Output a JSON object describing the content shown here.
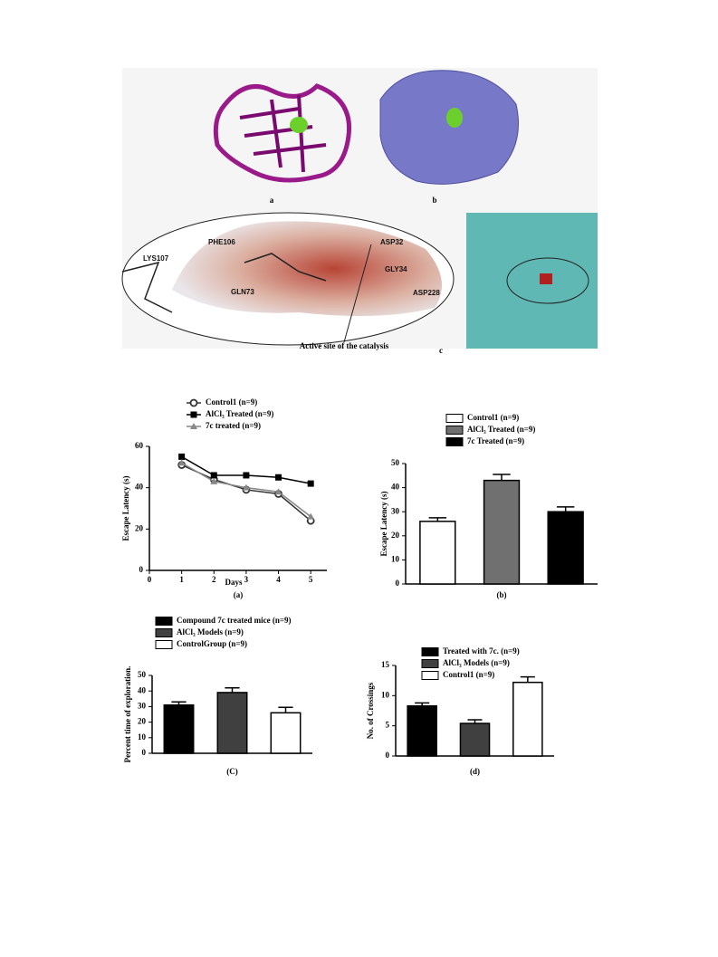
{
  "molecular_panel": {
    "label_a": "a",
    "label_b": "b",
    "label_c": "c",
    "caption": "Active site of the catalysis",
    "residues": [
      "PHE106",
      "ASP32",
      "LYS107",
      "GLY34",
      "GLN73",
      "ASP228"
    ]
  },
  "chart_data": [
    {
      "type": "line",
      "xlabel": "Days",
      "ylabel": "Escape Latency (s)",
      "caption": "(a)",
      "x": [
        1,
        2,
        3,
        4,
        5
      ],
      "xlim": [
        0,
        5.5
      ],
      "xticks": [
        0,
        1,
        2,
        3,
        4,
        5
      ],
      "ylim": [
        0,
        60
      ],
      "yticks": [
        0,
        20,
        40,
        60
      ],
      "series": [
        {
          "name": "Control1 (n=9)",
          "color": "#333333",
          "marker": "circle",
          "values": [
            51,
            44,
            39,
            37,
            24
          ]
        },
        {
          "name": "AlCl₃ Treated (n=9)",
          "color": "#000000",
          "marker": "square",
          "values": [
            55,
            46,
            46,
            45,
            42
          ]
        },
        {
          "name": "7c treated (n=9)",
          "color": "#888888",
          "marker": "triangle",
          "values": [
            52,
            43,
            40,
            38,
            26
          ]
        }
      ]
    },
    {
      "type": "bar",
      "ylabel": "Escape Latency (s)",
      "caption": "(b)",
      "categories": [
        null
      ],
      "ylim": [
        0,
        50
      ],
      "yticks": [
        0,
        10,
        20,
        30,
        40,
        50
      ],
      "series": [
        {
          "name": "Control1 (n=9)",
          "color": "#ffffff",
          "values": [
            26
          ],
          "errors": [
            1.5
          ]
        },
        {
          "name": "AlCl₃ Treated (n=9)",
          "color": "#707070",
          "values": [
            43
          ],
          "errors": [
            2.5
          ]
        },
        {
          "name": "7c Treated (n=9)",
          "color": "#000000",
          "values": [
            30
          ],
          "errors": [
            2
          ]
        }
      ]
    },
    {
      "type": "bar",
      "ylabel": "Percent time of exploration.",
      "caption": "(C)",
      "categories": [
        null
      ],
      "ylim": [
        0,
        50
      ],
      "yticks": [
        0,
        10,
        20,
        30,
        40,
        50
      ],
      "series": [
        {
          "name": "Compound 7c treated mice (n=9)",
          "color": "#000000",
          "values": [
            31
          ],
          "errors": [
            2
          ]
        },
        {
          "name": "AlCl₃ Models (n=9)",
          "color": "#404040",
          "values": [
            39
          ],
          "errors": [
            3
          ]
        },
        {
          "name": "ControlGroup (n=9)",
          "color": "#ffffff",
          "values": [
            26
          ],
          "errors": [
            3.5
          ]
        }
      ]
    },
    {
      "type": "bar",
      "ylabel": "No. of Crossings",
      "caption": "(d)",
      "categories": [
        null
      ],
      "ylim": [
        0,
        15
      ],
      "yticks": [
        0,
        5,
        10,
        15
      ],
      "series": [
        {
          "name": "Treated with 7c. (n=9)",
          "color": "#000000",
          "values": [
            8.3
          ],
          "errors": [
            0.5
          ]
        },
        {
          "name": "AlCl₃ Models (n=9)",
          "color": "#404040",
          "values": [
            5.4
          ],
          "errors": [
            0.6
          ]
        },
        {
          "name": "Control1 (n=9)",
          "color": "#ffffff",
          "values": [
            12.2
          ],
          "errors": [
            0.9
          ]
        }
      ]
    }
  ]
}
